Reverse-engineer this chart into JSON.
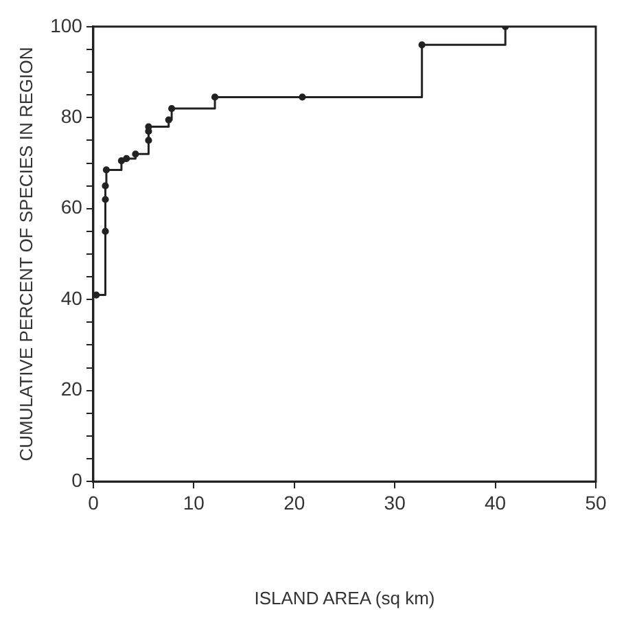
{
  "chart_data": {
    "type": "step",
    "xlabel": "ISLAND AREA (sq km)",
    "ylabel": "CUMULATIVE PERCENT OF SPECIES IN REGION",
    "series": [
      {
        "color": "#222222",
        "x": [
          0.3,
          1.2,
          1.2,
          1.2,
          1.3,
          2.8,
          3.3,
          4.2,
          5.5,
          5.5,
          5.5,
          7.5,
          7.8,
          12.1,
          20.8,
          32.7,
          41
        ],
        "values": [
          41,
          55,
          62,
          65,
          68.5,
          70.5,
          71,
          72,
          75,
          77,
          78,
          79.5,
          82,
          84.5,
          84.5,
          96,
          100
        ]
      }
    ],
    "xlim": [
      0,
      50
    ],
    "xticks": [
      0,
      10,
      20,
      30,
      40,
      50
    ],
    "ylim": [
      0,
      100
    ],
    "yticks": [
      0,
      {
        "value": 5,
        "label": null
      },
      20,
      {
        "value": 15,
        "label": null
      },
      {
        "value": 10,
        "label": null
      },
      {
        "value": 25,
        "label": null
      },
      40,
      {
        "value": 30,
        "label": null
      },
      {
        "value": 35,
        "label": null
      },
      {
        "value": 45,
        "label": null
      },
      {
        "value": 50,
        "label": null
      },
      {
        "value": 55,
        "label": null
      },
      60,
      {
        "value": 65,
        "label": null
      },
      {
        "value": 70,
        "label": null
      },
      {
        "value": 75,
        "label": null
      },
      80,
      {
        "value": 85,
        "label": null
      },
      {
        "value": 90,
        "label": null
      },
      {
        "value": 95,
        "label": null
      },
      100
    ],
    "marker": "circle",
    "line_style": "solid",
    "grid": false,
    "legend": false
  }
}
